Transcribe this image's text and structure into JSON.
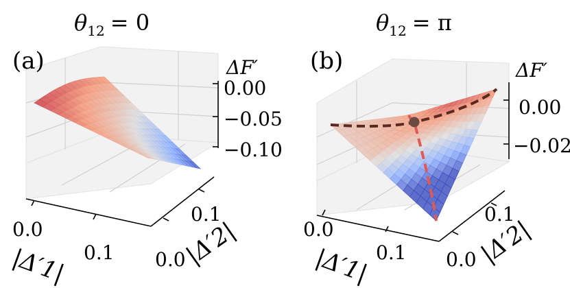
{
  "chart_data": [
    {
      "type": "surface",
      "panel_label": "(a)",
      "title": "θ12 = 0",
      "title_symbol": "θ",
      "title_sub": "12",
      "title_rhs": "= 0",
      "xlabel": "|Δ′1|",
      "ylabel": "|Δ′2|",
      "zlabel": "ΔF′",
      "x_ticks": [
        "0.0",
        "0.1"
      ],
      "y_ticks": [
        "0.0",
        "0.1"
      ],
      "z_ticks": [
        "0.00",
        "−0.05",
        "−0.10"
      ],
      "xlim": [
        0,
        0.15
      ],
      "ylim": [
        0,
        0.15
      ],
      "zlim": [
        -0.13,
        0.01
      ],
      "colormap": "coolwarm",
      "corner_values": {
        "x0y0": 0.0,
        "x1y0": -0.02,
        "x0y1": -0.04,
        "x1y1": -0.12
      }
    },
    {
      "type": "surface",
      "panel_label": "(b)",
      "title": "θ12 = π",
      "title_symbol": "θ",
      "title_sub": "12",
      "title_rhs": "= π",
      "xlabel": "|Δ′1|",
      "ylabel": "|Δ′2|",
      "zlabel": "ΔF′",
      "x_ticks": [
        "0.0",
        "0.1"
      ],
      "y_ticks": [
        "0.0",
        "0.1"
      ],
      "z_ticks": [
        "0.00",
        "−0.02"
      ],
      "xlim": [
        0,
        0.15
      ],
      "ylim": [
        0,
        0.15
      ],
      "zlim": [
        -0.045,
        0.012
      ],
      "colormap": "coolwarm",
      "corner_values": {
        "x0y0": 0.0,
        "x1y0": -0.04,
        "x0y1": 0.0,
        "x1y1": 0.006
      },
      "paths": [
        {
          "name": "dark-dashed-path",
          "color": "#5a2a22"
        },
        {
          "name": "red-dashed-path",
          "color": "#e05a55"
        }
      ],
      "marker": {
        "label": "saddle-point",
        "color": "#6b4a42"
      }
    }
  ]
}
